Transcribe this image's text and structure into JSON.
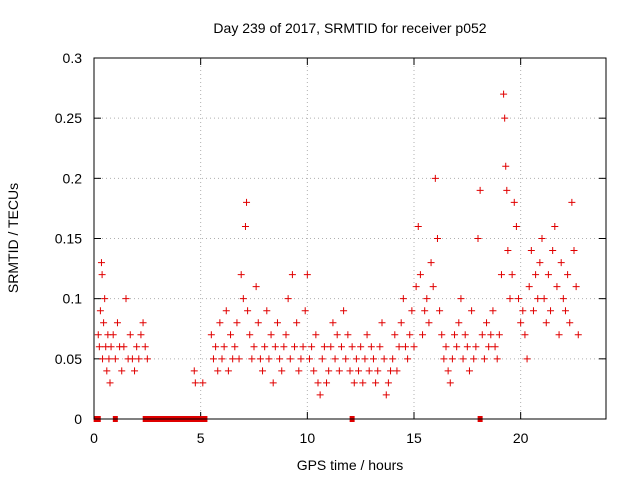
{
  "chart_data": {
    "type": "scatter",
    "title": "Day 239 of 2017, SRMTID for receiver p052",
    "xlabel": "GPS time / hours",
    "ylabel": "SRMTID / TECUs",
    "xlim": [
      0,
      24
    ],
    "ylim": [
      0,
      0.3
    ],
    "xticks": [
      0,
      5,
      10,
      15,
      20
    ],
    "yticks": [
      0,
      0.05,
      0.1,
      0.15,
      0.2,
      0.25,
      0.3
    ],
    "ytick_labels": [
      "0",
      "0.05",
      "0.1",
      "0.15",
      "0.2",
      "0.25",
      "0.3"
    ],
    "grid": true,
    "marker": "+",
    "color": "#e00000",
    "points": [
      [
        0.2,
        0.07
      ],
      [
        0.25,
        0.06
      ],
      [
        0.3,
        0.09
      ],
      [
        0.35,
        0.13
      ],
      [
        0.38,
        0.12
      ],
      [
        0.4,
        0.05
      ],
      [
        0.45,
        0.08
      ],
      [
        0.5,
        0.1
      ],
      [
        0.55,
        0.06
      ],
      [
        0.6,
        0.04
      ],
      [
        0.65,
        0.07
      ],
      [
        0.7,
        0.05
      ],
      [
        0.75,
        0.03
      ],
      [
        0.8,
        0.06
      ],
      [
        0.9,
        0.07
      ],
      [
        1.0,
        0.05
      ],
      [
        1.1,
        0.08
      ],
      [
        1.2,
        0.06
      ],
      [
        1.3,
        0.04
      ],
      [
        1.4,
        0.06
      ],
      [
        1.5,
        0.1
      ],
      [
        1.6,
        0.05
      ],
      [
        1.7,
        0.07
      ],
      [
        1.8,
        0.05
      ],
      [
        1.9,
        0.04
      ],
      [
        2.0,
        0.06
      ],
      [
        2.1,
        0.05
      ],
      [
        2.2,
        0.07
      ],
      [
        2.3,
        0.08
      ],
      [
        2.4,
        0.06
      ],
      [
        2.5,
        0.05
      ],
      [
        4.7,
        0.04
      ],
      [
        4.75,
        0.03
      ],
      [
        5.1,
        0.03
      ],
      [
        5.5,
        0.07
      ],
      [
        5.6,
        0.05
      ],
      [
        5.7,
        0.06
      ],
      [
        5.8,
        0.04
      ],
      [
        5.9,
        0.08
      ],
      [
        6.0,
        0.05
      ],
      [
        6.1,
        0.06
      ],
      [
        6.2,
        0.09
      ],
      [
        6.3,
        0.04
      ],
      [
        6.4,
        0.07
      ],
      [
        6.5,
        0.05
      ],
      [
        6.6,
        0.06
      ],
      [
        6.7,
        0.08
      ],
      [
        6.8,
        0.05
      ],
      [
        6.9,
        0.12
      ],
      [
        7.0,
        0.1
      ],
      [
        7.1,
        0.16
      ],
      [
        7.15,
        0.18
      ],
      [
        7.2,
        0.09
      ],
      [
        7.3,
        0.07
      ],
      [
        7.4,
        0.05
      ],
      [
        7.5,
        0.06
      ],
      [
        7.6,
        0.11
      ],
      [
        7.7,
        0.08
      ],
      [
        7.8,
        0.05
      ],
      [
        7.9,
        0.04
      ],
      [
        8.0,
        0.06
      ],
      [
        8.1,
        0.09
      ],
      [
        8.2,
        0.05
      ],
      [
        8.3,
        0.07
      ],
      [
        8.4,
        0.03
      ],
      [
        8.5,
        0.06
      ],
      [
        8.6,
        0.08
      ],
      [
        8.7,
        0.05
      ],
      [
        8.8,
        0.04
      ],
      [
        8.9,
        0.06
      ],
      [
        9.0,
        0.07
      ],
      [
        9.1,
        0.1
      ],
      [
        9.2,
        0.05
      ],
      [
        9.3,
        0.12
      ],
      [
        9.4,
        0.06
      ],
      [
        9.5,
        0.08
      ],
      [
        9.6,
        0.04
      ],
      [
        9.7,
        0.05
      ],
      [
        9.8,
        0.06
      ],
      [
        9.9,
        0.09
      ],
      [
        10.0,
        0.12
      ],
      [
        10.1,
        0.05
      ],
      [
        10.2,
        0.06
      ],
      [
        10.3,
        0.04
      ],
      [
        10.4,
        0.07
      ],
      [
        10.5,
        0.03
      ],
      [
        10.6,
        0.02
      ],
      [
        10.7,
        0.05
      ],
      [
        10.8,
        0.06
      ],
      [
        10.9,
        0.03
      ],
      [
        11.0,
        0.04
      ],
      [
        11.1,
        0.06
      ],
      [
        11.2,
        0.08
      ],
      [
        11.3,
        0.05
      ],
      [
        11.4,
        0.07
      ],
      [
        11.5,
        0.04
      ],
      [
        11.6,
        0.06
      ],
      [
        11.7,
        0.09
      ],
      [
        11.8,
        0.05
      ],
      [
        11.9,
        0.07
      ],
      [
        12.0,
        0.04
      ],
      [
        12.1,
        0.06
      ],
      [
        12.2,
        0.03
      ],
      [
        12.3,
        0.05
      ],
      [
        12.4,
        0.04
      ],
      [
        12.5,
        0.06
      ],
      [
        12.6,
        0.03
      ],
      [
        12.7,
        0.05
      ],
      [
        12.8,
        0.07
      ],
      [
        12.9,
        0.04
      ],
      [
        13.0,
        0.06
      ],
      [
        13.1,
        0.05
      ],
      [
        13.2,
        0.03
      ],
      [
        13.3,
        0.04
      ],
      [
        13.4,
        0.06
      ],
      [
        13.5,
        0.08
      ],
      [
        13.6,
        0.05
      ],
      [
        13.7,
        0.02
      ],
      [
        13.8,
        0.03
      ],
      [
        13.9,
        0.04
      ],
      [
        14.0,
        0.05
      ],
      [
        14.1,
        0.07
      ],
      [
        14.2,
        0.04
      ],
      [
        14.3,
        0.06
      ],
      [
        14.4,
        0.08
      ],
      [
        14.5,
        0.1
      ],
      [
        14.6,
        0.06
      ],
      [
        14.7,
        0.05
      ],
      [
        14.8,
        0.07
      ],
      [
        14.9,
        0.09
      ],
      [
        15.0,
        0.06
      ],
      [
        15.1,
        0.11
      ],
      [
        15.2,
        0.16
      ],
      [
        15.3,
        0.12
      ],
      [
        15.4,
        0.07
      ],
      [
        15.5,
        0.09
      ],
      [
        15.6,
        0.1
      ],
      [
        15.7,
        0.08
      ],
      [
        15.8,
        0.13
      ],
      [
        15.9,
        0.11
      ],
      [
        16.0,
        0.2
      ],
      [
        16.1,
        0.15
      ],
      [
        16.2,
        0.09
      ],
      [
        16.3,
        0.07
      ],
      [
        16.4,
        0.05
      ],
      [
        16.5,
        0.06
      ],
      [
        16.6,
        0.04
      ],
      [
        16.7,
        0.03
      ],
      [
        16.8,
        0.05
      ],
      [
        16.9,
        0.07
      ],
      [
        17.0,
        0.06
      ],
      [
        17.1,
        0.08
      ],
      [
        17.2,
        0.1
      ],
      [
        17.3,
        0.05
      ],
      [
        17.4,
        0.07
      ],
      [
        17.5,
        0.06
      ],
      [
        17.6,
        0.04
      ],
      [
        17.7,
        0.09
      ],
      [
        17.8,
        0.05
      ],
      [
        17.9,
        0.06
      ],
      [
        18.0,
        0.15
      ],
      [
        18.1,
        0.19
      ],
      [
        18.2,
        0.07
      ],
      [
        18.3,
        0.05
      ],
      [
        18.4,
        0.08
      ],
      [
        18.5,
        0.06
      ],
      [
        18.6,
        0.07
      ],
      [
        18.7,
        0.09
      ],
      [
        18.8,
        0.06
      ],
      [
        18.9,
        0.05
      ],
      [
        19.0,
        0.07
      ],
      [
        19.1,
        0.12
      ],
      [
        19.2,
        0.27
      ],
      [
        19.25,
        0.25
      ],
      [
        19.3,
        0.21
      ],
      [
        19.35,
        0.19
      ],
      [
        19.4,
        0.14
      ],
      [
        19.5,
        0.1
      ],
      [
        19.6,
        0.12
      ],
      [
        19.7,
        0.18
      ],
      [
        19.8,
        0.16
      ],
      [
        19.9,
        0.1
      ],
      [
        20.0,
        0.08
      ],
      [
        20.1,
        0.09
      ],
      [
        20.2,
        0.07
      ],
      [
        20.3,
        0.05
      ],
      [
        20.4,
        0.11
      ],
      [
        20.5,
        0.14
      ],
      [
        20.6,
        0.09
      ],
      [
        20.7,
        0.12
      ],
      [
        20.8,
        0.1
      ],
      [
        20.9,
        0.13
      ],
      [
        21.0,
        0.15
      ],
      [
        21.1,
        0.1
      ],
      [
        21.2,
        0.08
      ],
      [
        21.3,
        0.12
      ],
      [
        21.4,
        0.09
      ],
      [
        21.5,
        0.14
      ],
      [
        21.6,
        0.16
      ],
      [
        21.7,
        0.11
      ],
      [
        21.8,
        0.07
      ],
      [
        21.9,
        0.13
      ],
      [
        22.0,
        0.1
      ],
      [
        22.1,
        0.09
      ],
      [
        22.2,
        0.12
      ],
      [
        22.3,
        0.08
      ],
      [
        22.4,
        0.18
      ],
      [
        22.5,
        0.14
      ],
      [
        22.6,
        0.11
      ],
      [
        22.7,
        0.07
      ]
    ],
    "zero_points": [
      0.1,
      0.2,
      1.0,
      2.4,
      2.6,
      2.8,
      3.0,
      3.2,
      3.4,
      3.6,
      3.8,
      4.0,
      4.2,
      4.4,
      4.6,
      4.8,
      5.0,
      5.2,
      12.1,
      18.1
    ]
  }
}
